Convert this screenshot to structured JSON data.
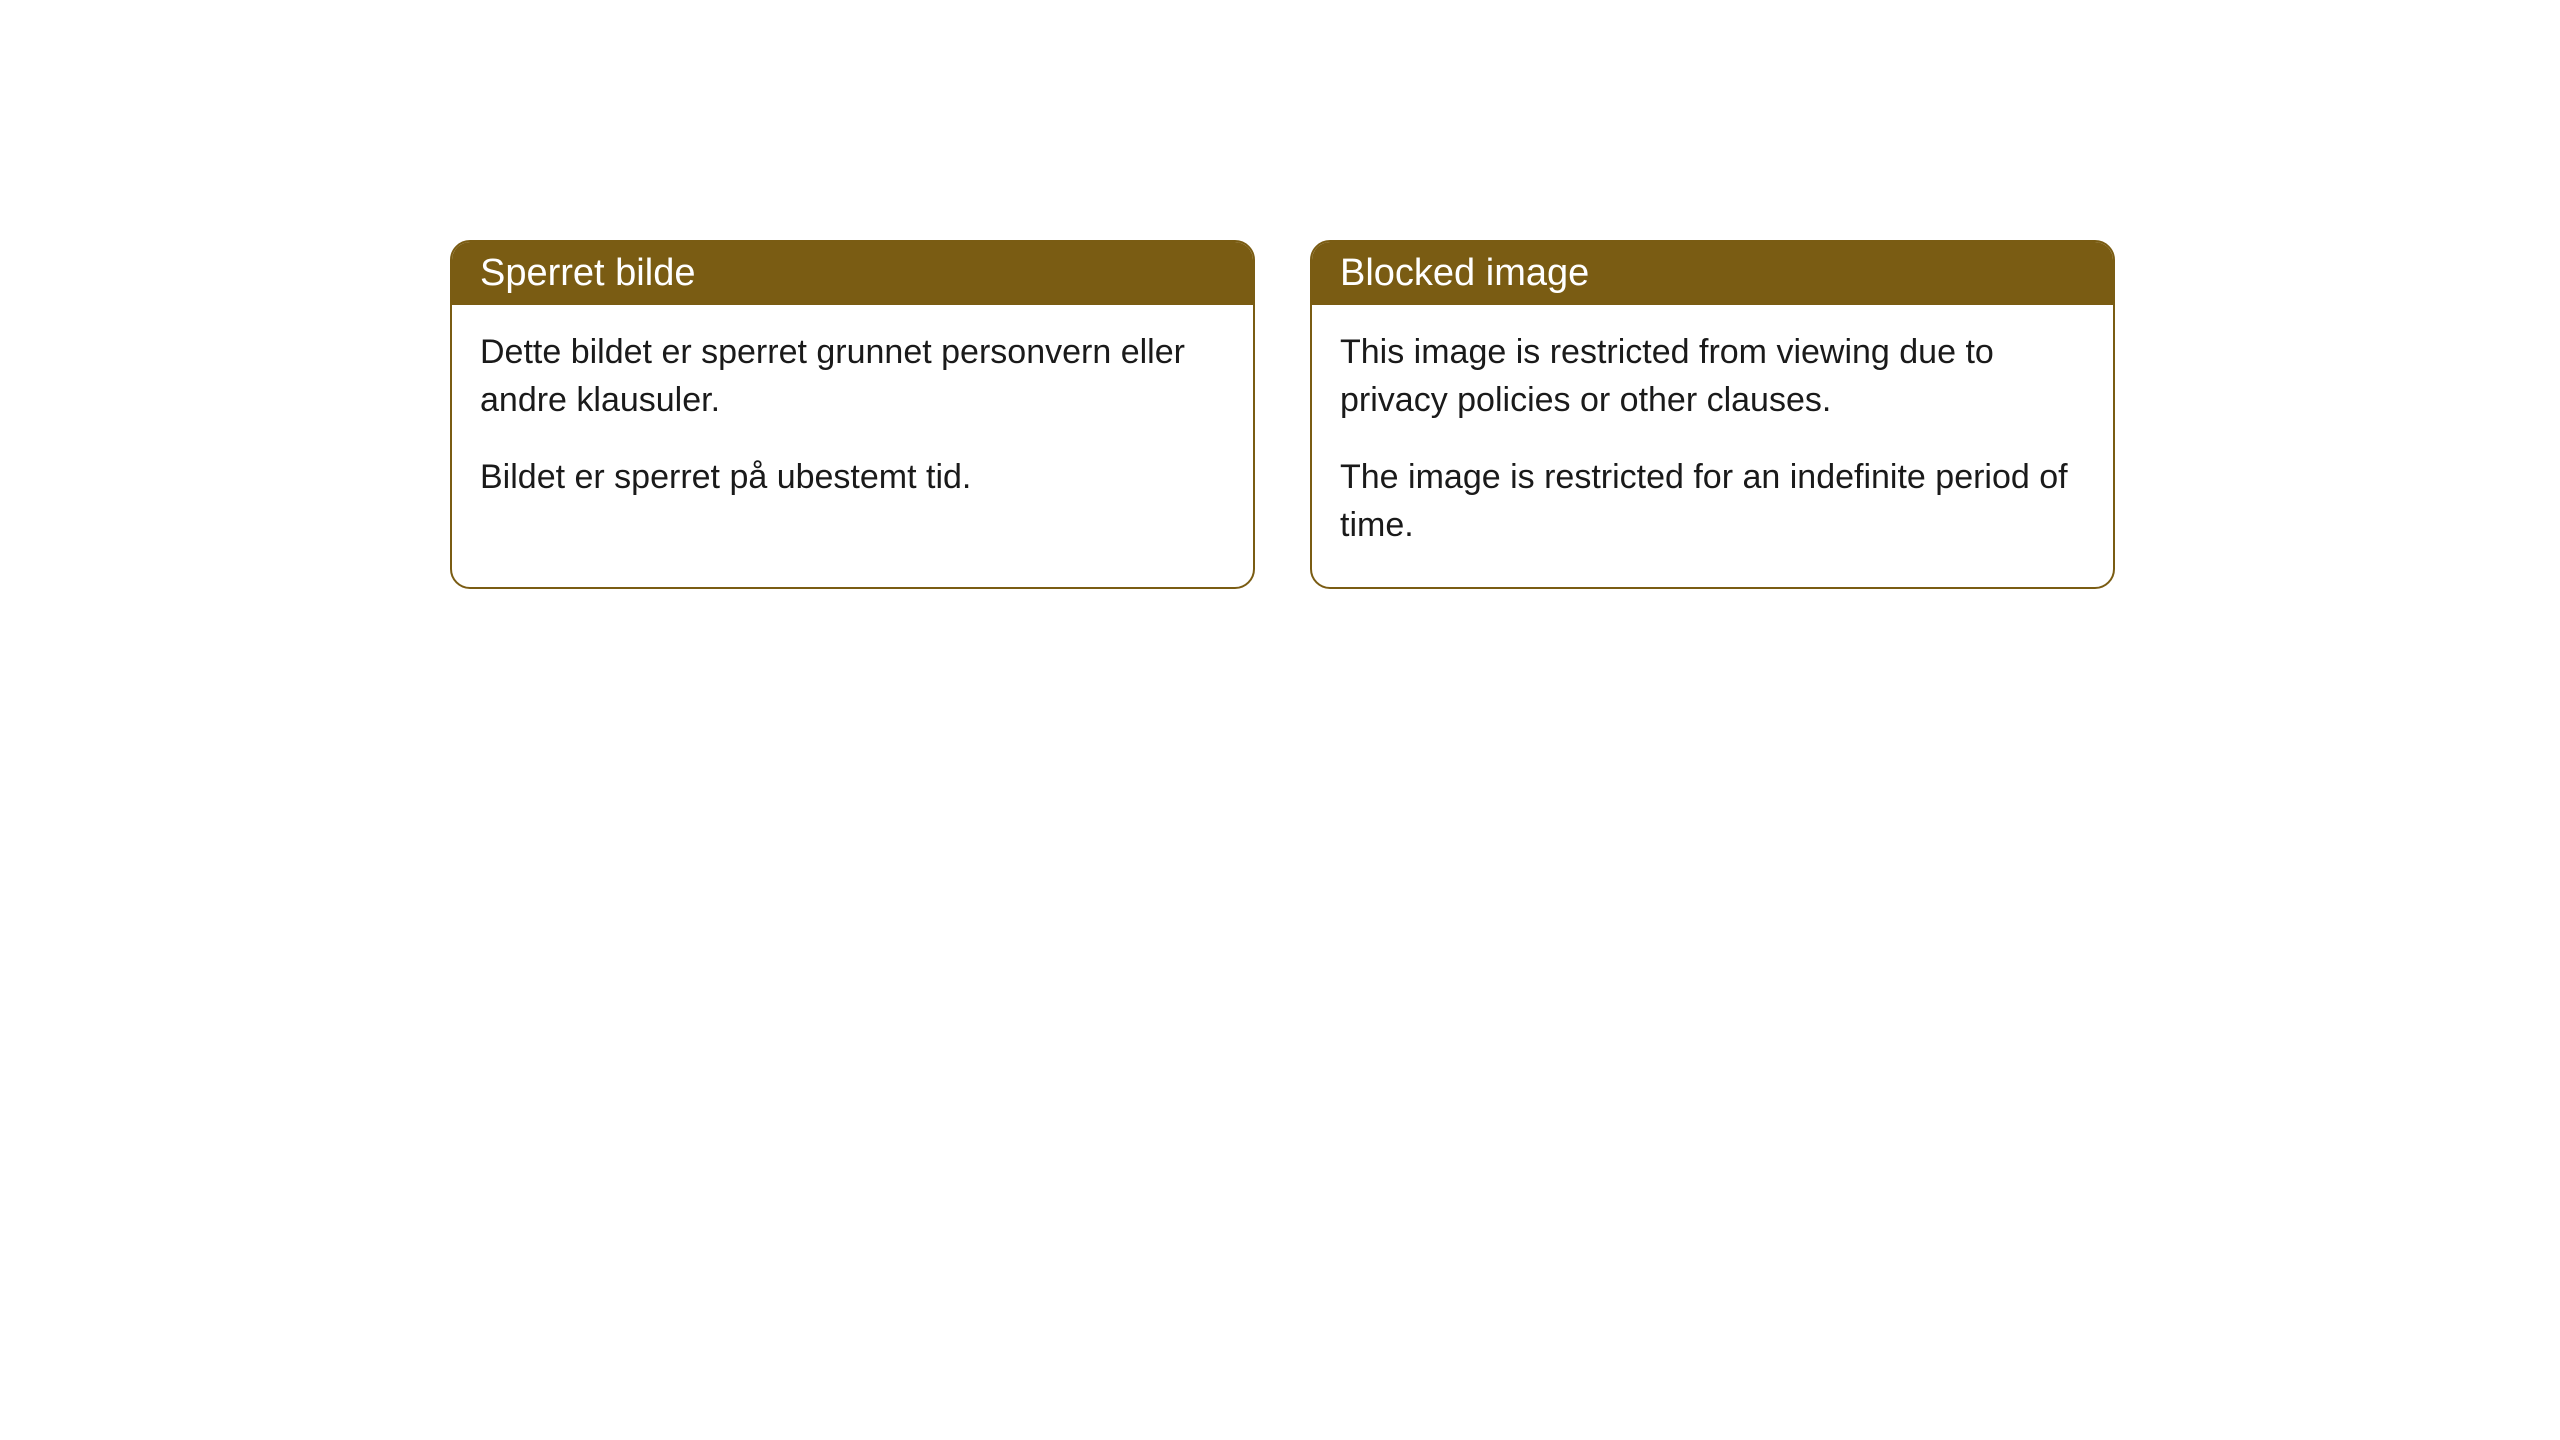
{
  "cards": [
    {
      "title": "Sperret bilde",
      "paragraph1": "Dette bildet er sperret grunnet personvern eller andre klausuler.",
      "paragraph2": "Bildet er sperret på ubestemt tid."
    },
    {
      "title": "Blocked image",
      "paragraph1": "This image is restricted from viewing due to privacy policies or other clauses.",
      "paragraph2": "The image is restricted for an indefinite period of time."
    }
  ],
  "styling": {
    "header_bg_color": "#7a5c13",
    "header_text_color": "#ffffff",
    "border_color": "#7a5c13",
    "body_bg_color": "#ffffff",
    "body_text_color": "#1a1a1a",
    "border_radius": 20,
    "title_fontsize": 38,
    "body_fontsize": 34
  }
}
